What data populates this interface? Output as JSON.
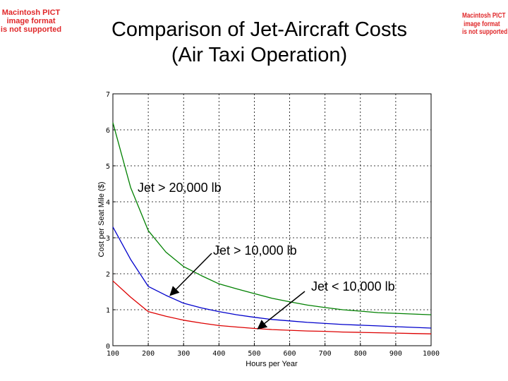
{
  "pict_notice_left": [
    "Macintosh PICT",
    "image format",
    "is not supported"
  ],
  "pict_notice_right": [
    "Macintosh PICT",
    "image format",
    "is not supported"
  ],
  "slide_title_line1": "Comparison of Jet-Aircraft Costs",
  "slide_title_line2": "(Air Taxi Operation)",
  "colors": {
    "green": "#008000",
    "blue": "#0000cc",
    "red": "#dd0000",
    "grid": "#000000"
  },
  "chart_data": {
    "type": "line",
    "title": "Comparison of Jet-Aircraft Costs (Air Taxi Operation)",
    "xlabel": "Hours per Year",
    "ylabel": "Cost per Seat Mile ($)",
    "xlim": [
      100,
      1000
    ],
    "ylim": [
      0,
      7
    ],
    "xticks": [
      100,
      200,
      300,
      400,
      500,
      600,
      700,
      800,
      900,
      1000
    ],
    "yticks": [
      0,
      1,
      2,
      3,
      4,
      5,
      6,
      7
    ],
    "grid": true,
    "x": [
      100,
      150,
      200,
      250,
      300,
      350,
      400,
      450,
      500,
      550,
      600,
      650,
      700,
      750,
      800,
      850,
      900,
      950,
      1000
    ],
    "series": [
      {
        "name": "Jet > 20,000 lb",
        "color": "#008000",
        "values": [
          6.2,
          4.4,
          3.2,
          2.6,
          2.2,
          1.95,
          1.72,
          1.58,
          1.45,
          1.32,
          1.22,
          1.13,
          1.06,
          1.0,
          0.96,
          0.92,
          0.9,
          0.88,
          0.86
        ]
      },
      {
        "name": "Jet > 10,000 lb",
        "color": "#0000cc",
        "values": [
          3.3,
          2.4,
          1.65,
          1.4,
          1.18,
          1.05,
          0.95,
          0.86,
          0.79,
          0.73,
          0.69,
          0.65,
          0.62,
          0.59,
          0.57,
          0.55,
          0.53,
          0.51,
          0.49
        ]
      },
      {
        "name": "Jet < 10,000 lb",
        "color": "#dd0000",
        "values": [
          1.8,
          1.35,
          0.95,
          0.82,
          0.71,
          0.63,
          0.56,
          0.52,
          0.48,
          0.45,
          0.43,
          0.41,
          0.4,
          0.38,
          0.37,
          0.36,
          0.35,
          0.34,
          0.33
        ]
      }
    ],
    "annotations": [
      {
        "text": "Jet > 20,000 lb",
        "series": "Jet > 20,000 lb"
      },
      {
        "text": "Jet > 10,000 lb",
        "series": "Jet > 10,000 lb",
        "arrow_to": [
          262,
          1.4
        ]
      },
      {
        "text": "Jet < 10,000 lb",
        "series": "Jet < 10,000 lb",
        "arrow_to": [
          510,
          0.47
        ]
      }
    ]
  }
}
